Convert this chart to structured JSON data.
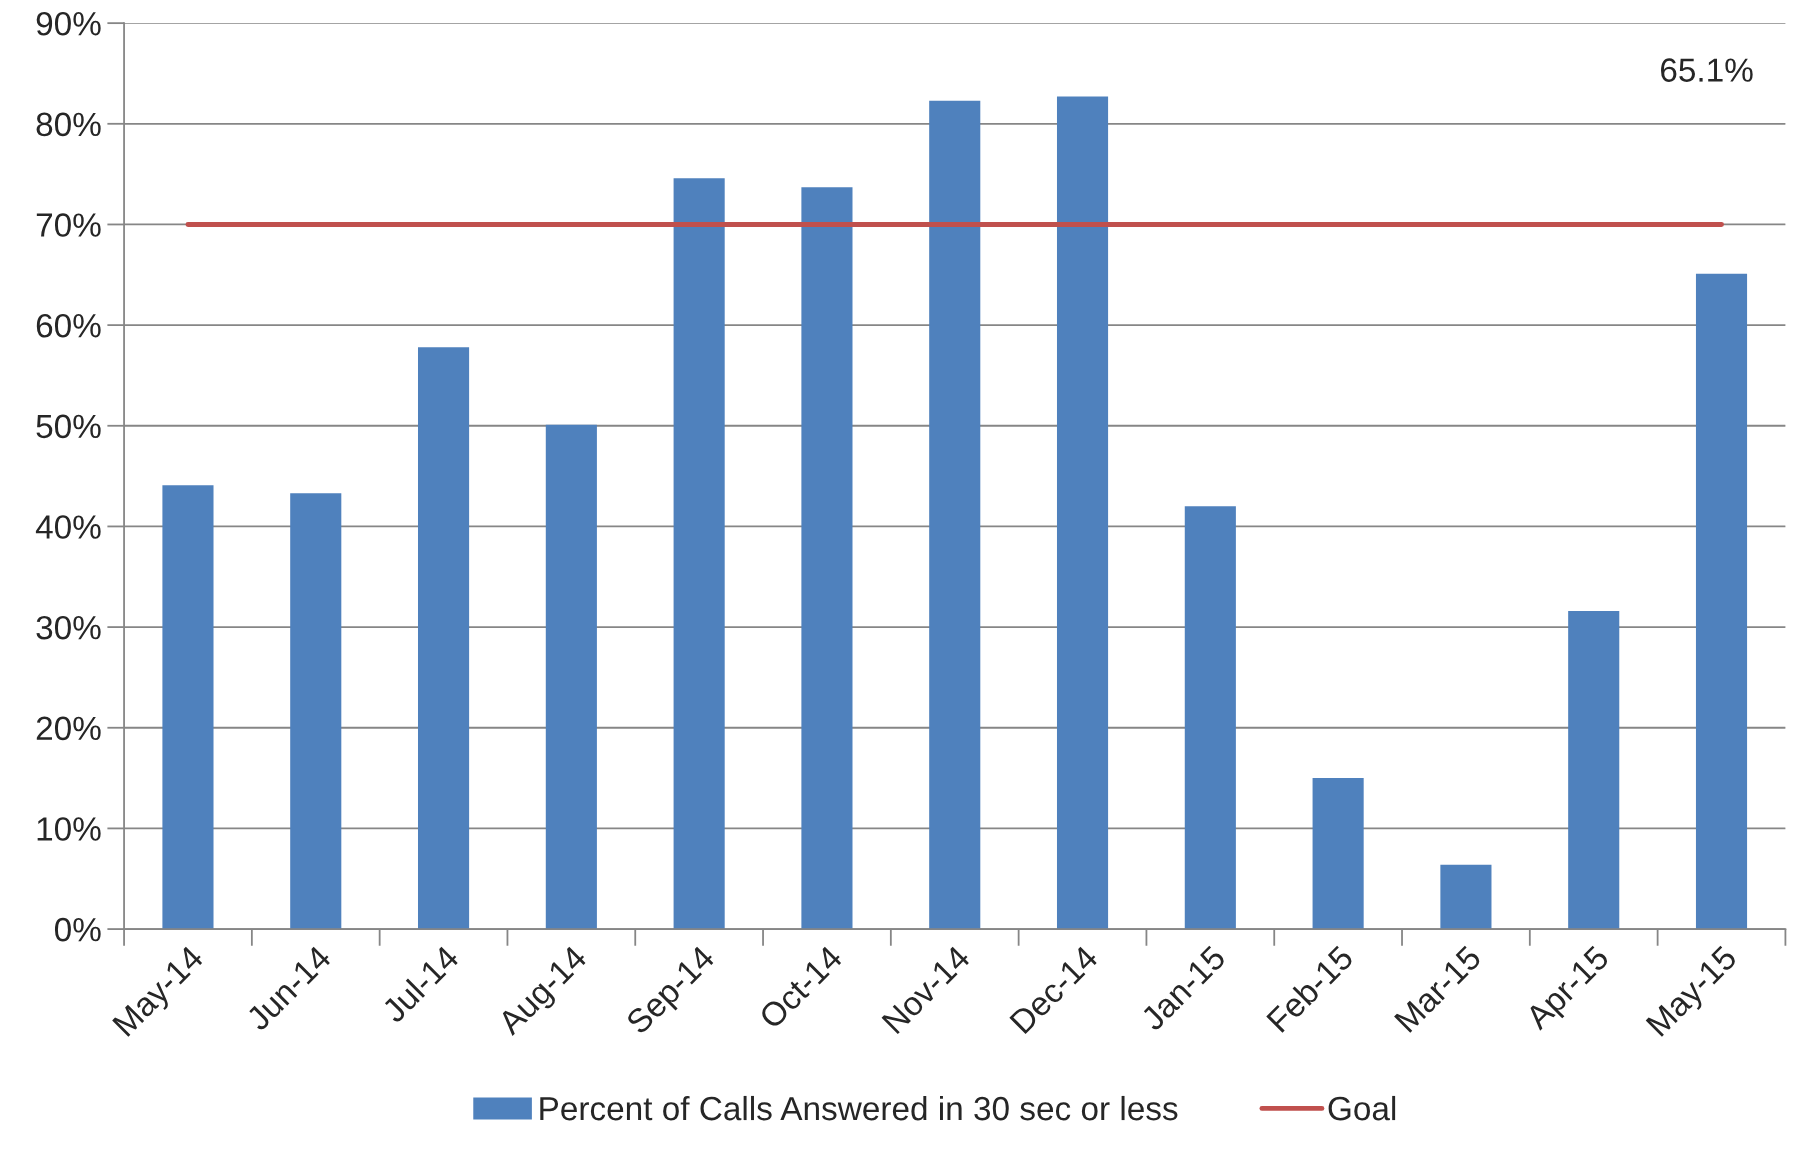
{
  "chart_data": {
    "type": "bar",
    "categories": [
      "May-14",
      "Jun-14",
      "Jul-14",
      "Aug-14",
      "Sep-14",
      "Oct-14",
      "Nov-14",
      "Dec-14",
      "Jan-15",
      "Feb-15",
      "Mar-15",
      "Apr-15",
      "May-15"
    ],
    "series": [
      {
        "name": "Percent of Calls Answered in 30 sec or less",
        "color": "#4f81bd",
        "values": [
          44.1,
          43.3,
          57.8,
          50.1,
          74.6,
          73.7,
          82.3,
          82.7,
          42.0,
          15.0,
          6.4,
          31.6,
          65.1
        ]
      },
      {
        "name": "Goal",
        "type": "line",
        "color": "#c0504d",
        "values": [
          70,
          70,
          70,
          70,
          70,
          70,
          70,
          70,
          70,
          70,
          70,
          70,
          70
        ]
      }
    ],
    "ylim": [
      0,
      90
    ],
    "yticks": [
      {
        "value": 0,
        "label": "0%"
      },
      {
        "value": 10,
        "label": "10%"
      },
      {
        "value": 20,
        "label": "20%"
      },
      {
        "value": 30,
        "label": "30%"
      },
      {
        "value": 40,
        "label": "40%"
      },
      {
        "value": 50,
        "label": "50%"
      },
      {
        "value": 60,
        "label": "60%"
      },
      {
        "value": 70,
        "label": "70%"
      },
      {
        "value": 80,
        "label": "80%"
      },
      {
        "value": 90,
        "label": "90%"
      }
    ],
    "grid": "y",
    "legend": "bottom",
    "annotations": [
      "65.1%"
    ]
  }
}
